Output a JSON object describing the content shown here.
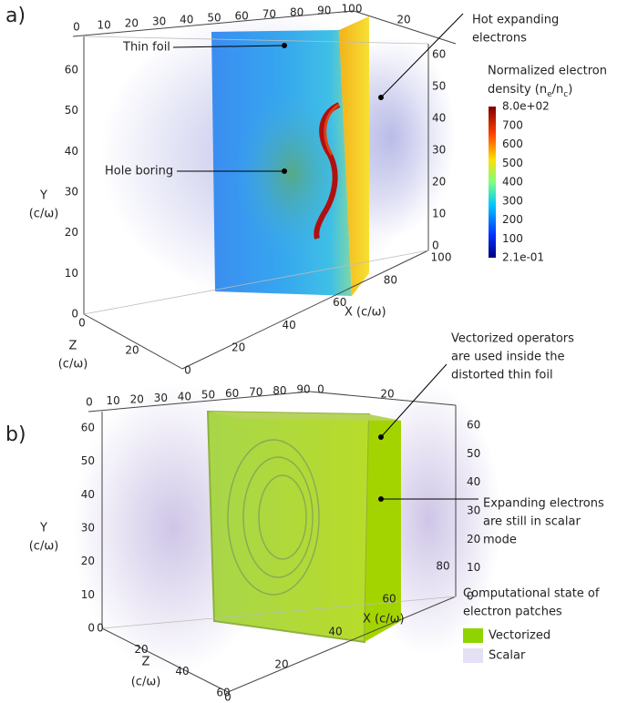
{
  "panel_a": {
    "label": "a)",
    "top_ticks": [
      "0",
      "10",
      "20",
      "30",
      "40",
      "50",
      "60",
      "70",
      "80",
      "90",
      "100"
    ],
    "top_right_ticks": [
      "20"
    ],
    "left_y_ticks": [
      "0",
      "10",
      "20",
      "30",
      "40",
      "50",
      "60"
    ],
    "right_y_ticks": [
      "0",
      "10",
      "20",
      "30",
      "40",
      "50",
      "60"
    ],
    "x_ticks": [
      "0",
      "20",
      "40",
      "60",
      "80",
      "100"
    ],
    "z_ticks": [
      "0",
      "20"
    ],
    "y_title": [
      "Y",
      "(c/ω)"
    ],
    "z_title": [
      "Z",
      "(c/ω)"
    ],
    "x_title": "X (c/ω)",
    "annotations": [
      {
        "lines": [
          "Thin foil"
        ]
      },
      {
        "lines": [
          "Hole boring"
        ]
      },
      {
        "lines": [
          "Hot  expanding",
          "electrons"
        ]
      }
    ],
    "colorbar": {
      "title_line1": "Normalized electron",
      "title_line2": {
        "before": "density (n",
        "sub1": "e",
        "middle": "/n",
        "sub2": "c",
        "after": ")"
      },
      "ticks": [
        "8.0e+02",
        "700",
        "600",
        "500",
        "400",
        "300",
        "200",
        "100",
        "2.1e-01"
      ]
    }
  },
  "panel_b": {
    "label": "b)",
    "top_ticks": [
      "0",
      "10",
      "20",
      "30",
      "40",
      "50",
      "60",
      "70",
      "80",
      "90"
    ],
    "top_right_ticks": [
      "0",
      "20"
    ],
    "left_y_ticks": [
      "0",
      "10",
      "20",
      "30",
      "40",
      "50",
      "60"
    ],
    "right_y_ticks": [
      "0",
      "10",
      "20",
      "30",
      "40",
      "50",
      "60"
    ],
    "x_ticks": [
      "0",
      "20",
      "40",
      "60",
      "80"
    ],
    "z_ticks": [
      "0",
      "20",
      "40",
      "60"
    ],
    "y_title": [
      "Y",
      "(c/ω)"
    ],
    "z_title": [
      "Z",
      "(c/ω)"
    ],
    "x_title": "X (c/ω)",
    "annotations": [
      {
        "lines": [
          "Vectorized operators",
          "are used inside the",
          "distorted thin foil"
        ]
      },
      {
        "lines": [
          "Expanding electrons",
          "are still in scalar",
          "mode"
        ]
      }
    ],
    "legend": {
      "title": [
        "Computational state of",
        "electron patches"
      ],
      "items": [
        {
          "label": "Vectorized",
          "color": "#8fd400"
        },
        {
          "label": "Scalar",
          "color": "#e6e0f5"
        }
      ]
    }
  }
}
